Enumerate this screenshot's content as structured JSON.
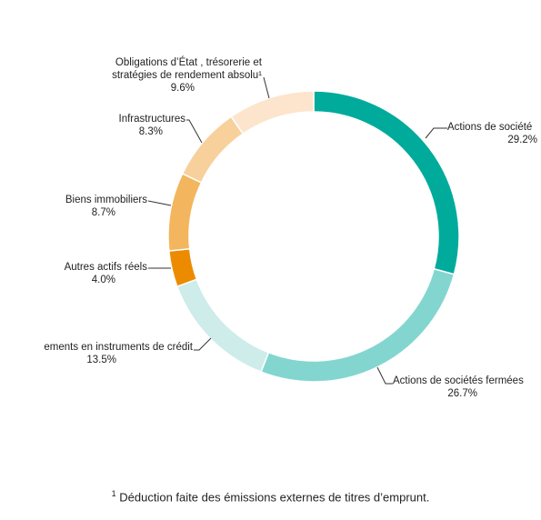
{
  "chart_data": {
    "type": "pie",
    "donut": true,
    "slices": [
      {
        "label": [
          "Actions de société"
        ],
        "value": 29.2,
        "value_label": "29.2%",
        "color": "#00ab9c"
      },
      {
        "label": [
          "Actions de sociétés fermées"
        ],
        "value": 26.7,
        "value_label": "26.7%",
        "color": "#83d6cf"
      },
      {
        "label": [
          "ements en instruments de crédit"
        ],
        "value": 13.5,
        "value_label": "13.5%",
        "color": "#cdecea"
      },
      {
        "label": [
          "Autres actifs réels"
        ],
        "value": 4.0,
        "value_label": "4.0%",
        "color": "#ec8b00"
      },
      {
        "label": [
          "Biens immobiliers"
        ],
        "value": 8.7,
        "value_label": "8.7%",
        "color": "#f3b55e"
      },
      {
        "label": [
          "Infrastructures"
        ],
        "value": 8.3,
        "value_label": "8.3%",
        "color": "#f8d09c"
      },
      {
        "label": [
          "Obligations d’État , trésorerie et",
          "stratégies de rendement absolu¹"
        ],
        "value": 9.6,
        "value_label": "9.6%",
        "color": "#fce5cc"
      }
    ]
  },
  "footnote": {
    "marker": "1",
    "text": " Déduction faite des émissions externes de titres d’emprunt."
  }
}
